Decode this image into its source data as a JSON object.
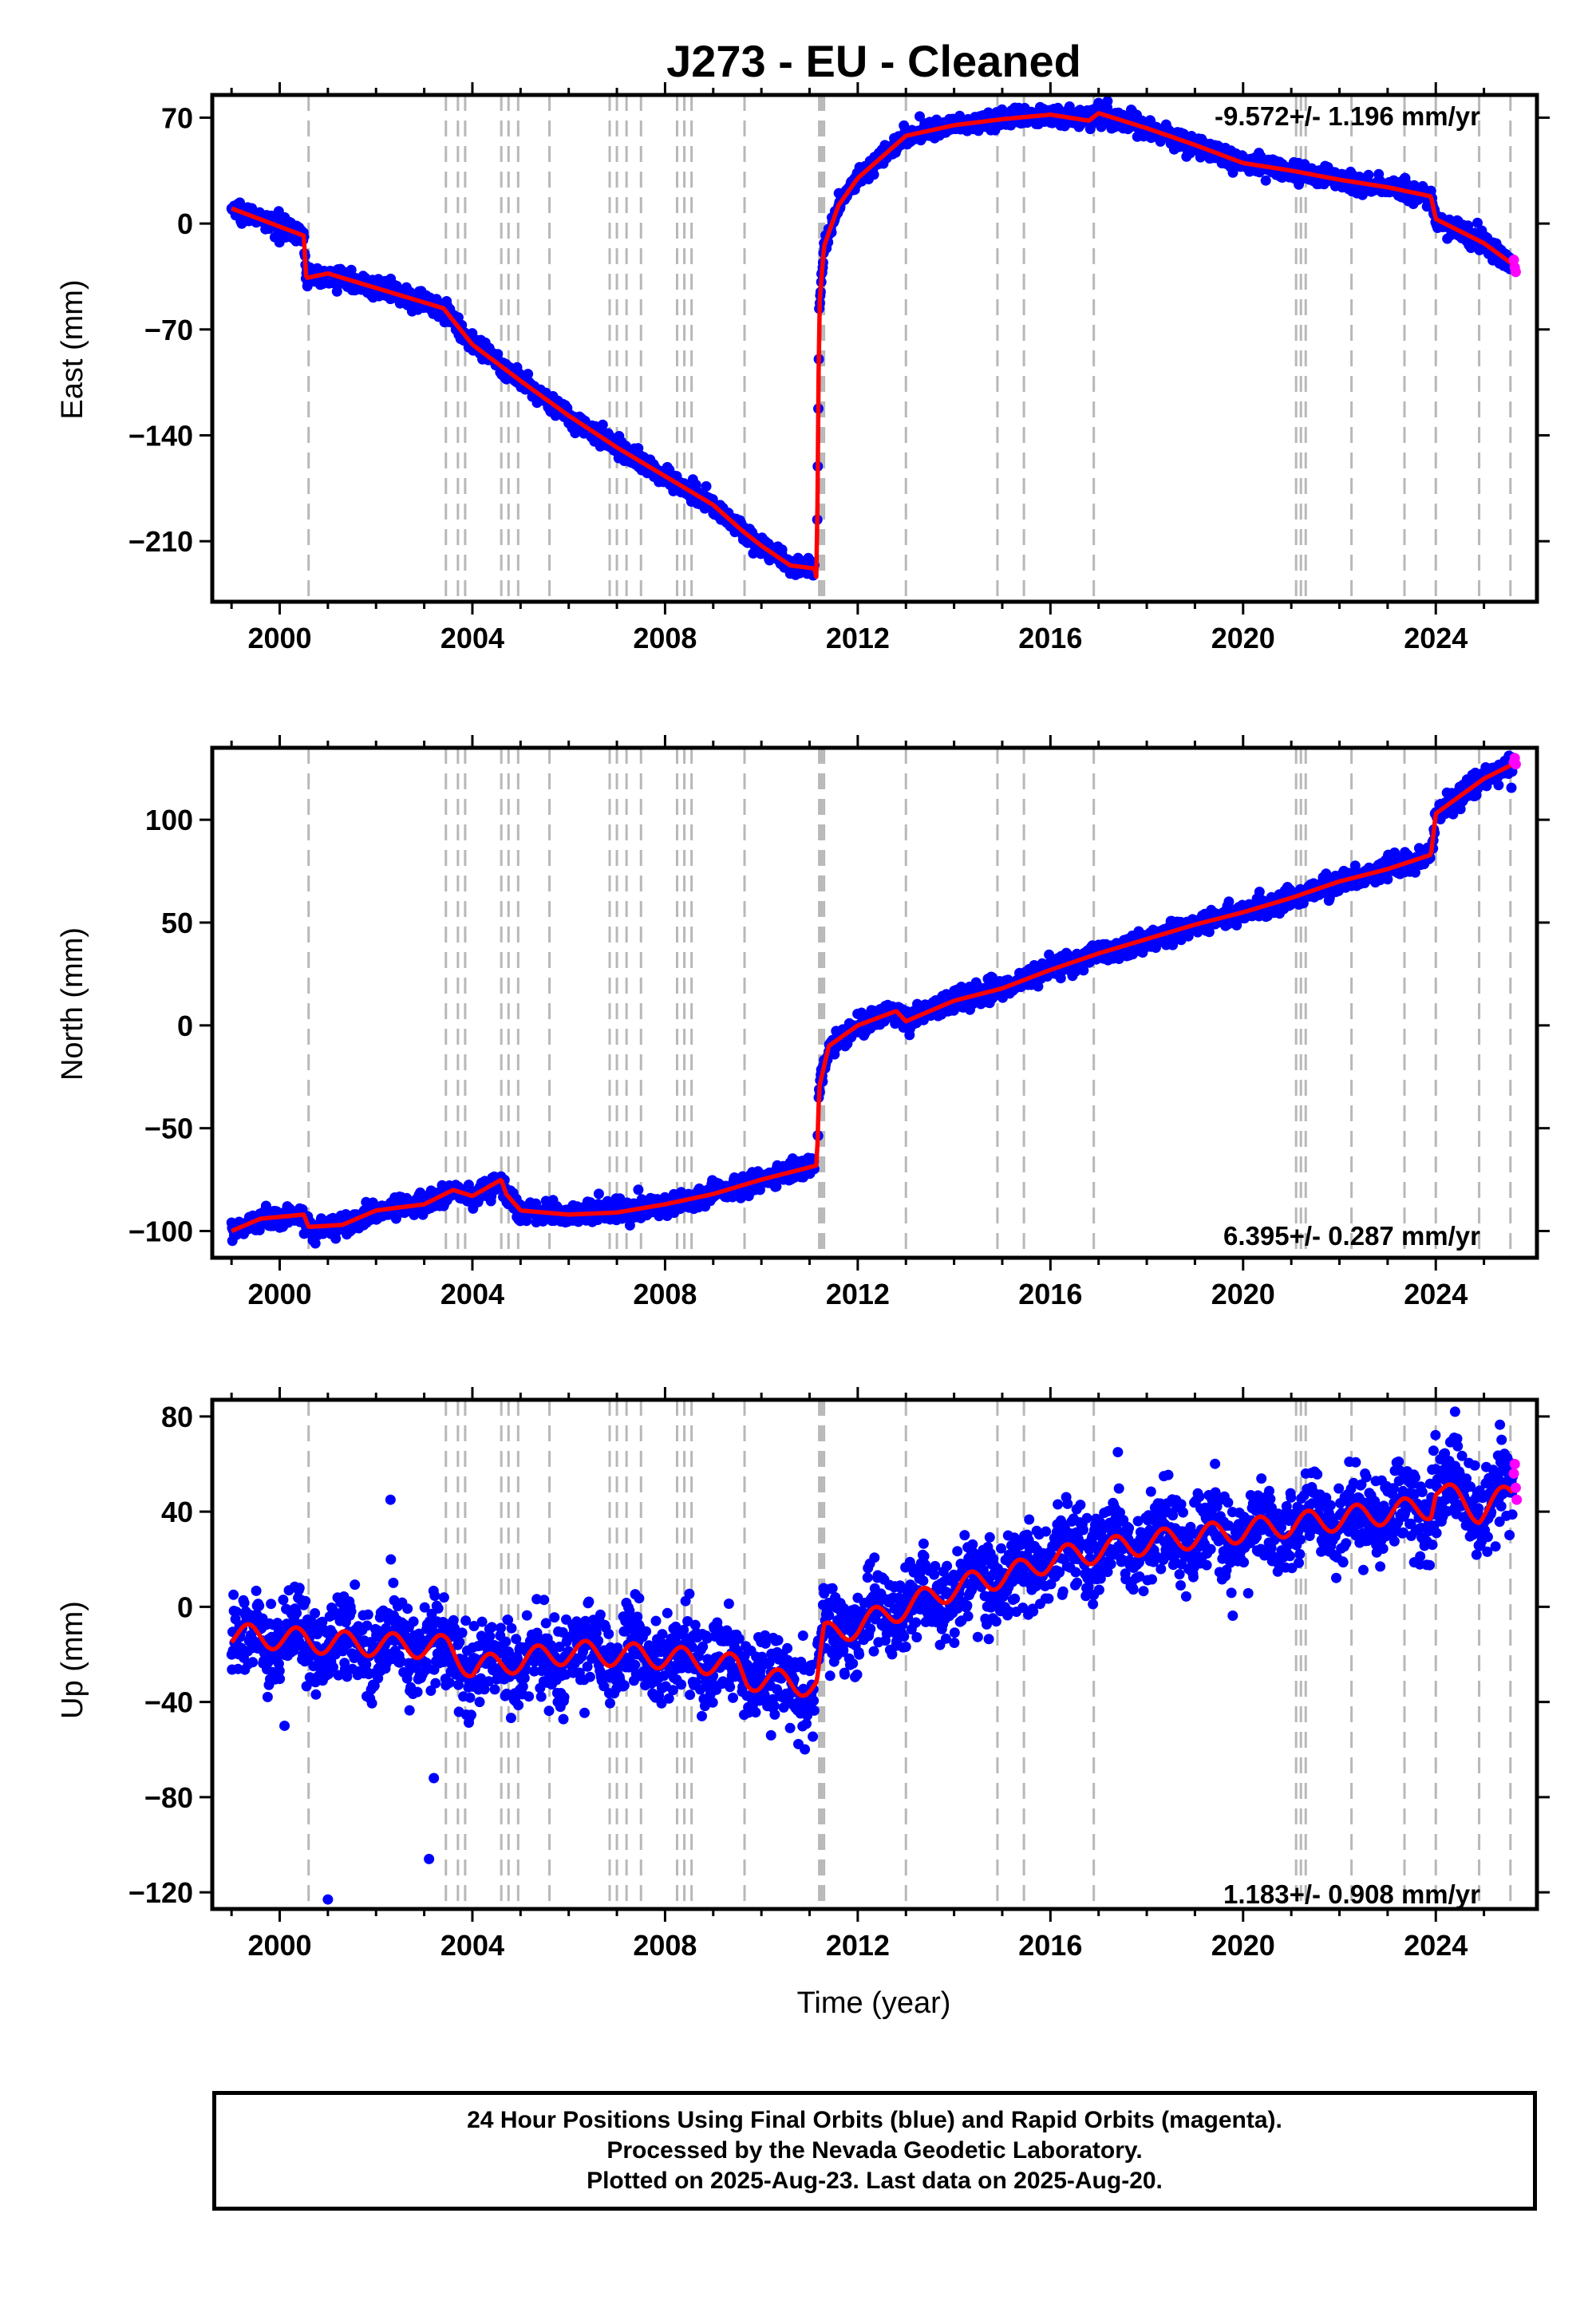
{
  "title": "J273  - EU - Cleaned",
  "xlabel": "Time (year)",
  "footer": {
    "line1": "24 Hour Positions Using Final Orbits (blue) and Rapid Orbits (magenta).",
    "line2": "Processed by the Nevada Geodetic Laboratory.",
    "line3": "Plotted on 2025-Aug-23. Last data on 2025-Aug-20."
  },
  "colors": {
    "final_orbits": "#0000ff",
    "rapid_orbits": "#ff00ff",
    "model": "#ff0000",
    "event_lines": "#b8b8b8"
  },
  "chart_data": [
    {
      "type": "scatter",
      "component": "East",
      "ylabel": "East (mm)",
      "rate": "-9.572+/- 1.196 mm/yr",
      "xlim": [
        1998.6,
        2026.1
      ],
      "ylim": [
        -250,
        85
      ],
      "yticks": [
        70,
        0,
        -70,
        -140,
        -210
      ],
      "xticks": [
        2000,
        2004,
        2008,
        2012,
        2016,
        2020,
        2024
      ],
      "noise": 3,
      "model": [
        [
          1999.0,
          10
        ],
        [
          2000.5,
          -8
        ],
        [
          2000.55,
          -36
        ],
        [
          2001.0,
          -33
        ],
        [
          2003.4,
          -56
        ],
        [
          2004.0,
          -80
        ],
        [
          2005.0,
          -104
        ],
        [
          2006.0,
          -127
        ],
        [
          2007.0,
          -148
        ],
        [
          2008.0,
          -167
        ],
        [
          2009.0,
          -186
        ],
        [
          2009.6,
          -203
        ],
        [
          2010.0,
          -213
        ],
        [
          2010.6,
          -226
        ],
        [
          2011.1,
          -228
        ],
        [
          2011.15,
          -235
        ],
        [
          2011.2,
          -55
        ],
        [
          2011.3,
          -15
        ],
        [
          2011.6,
          12
        ],
        [
          2012.0,
          30
        ],
        [
          2013.0,
          58
        ],
        [
          2014.0,
          65
        ],
        [
          2015.0,
          69
        ],
        [
          2016.0,
          72
        ],
        [
          2016.8,
          68
        ],
        [
          2017.0,
          73
        ],
        [
          2018.0,
          63
        ],
        [
          2019.0,
          52
        ],
        [
          2020.0,
          40
        ],
        [
          2021.0,
          35
        ],
        [
          2022.0,
          29
        ],
        [
          2023.0,
          24
        ],
        [
          2023.9,
          18
        ],
        [
          2024.0,
          3
        ],
        [
          2025.0,
          -13
        ],
        [
          2025.6,
          -27
        ]
      ],
      "rapid": [
        [
          2025.62,
          -24
        ],
        [
          2025.64,
          -29
        ],
        [
          2025.66,
          -32
        ]
      ],
      "events": [
        2000.6,
        2003.45,
        2003.7,
        2003.85,
        2004.6,
        2004.75,
        2004.95,
        2005.6,
        2006.85,
        2007.0,
        2007.2,
        2007.5,
        2008.25,
        2008.4,
        2008.55,
        2009.65,
        2011.2,
        2011.25,
        2011.3,
        2013.0,
        2014.9,
        2015.45,
        2016.9,
        2021.1,
        2021.2,
        2021.3,
        2022.25,
        2023.35,
        2024.0,
        2024.9,
        2025.55
      ]
    },
    {
      "type": "scatter",
      "component": "North",
      "ylabel": "North (mm)",
      "rate": "6.395+/- 0.287 mm/yr",
      "xlim": [
        1998.6,
        2026.1
      ],
      "ylim": [
        -113,
        135
      ],
      "yticks": [
        100,
        50,
        0,
        -50,
        -100
      ],
      "xticks": [
        2000,
        2004,
        2008,
        2012,
        2016,
        2020,
        2024
      ],
      "noise": 2.5,
      "model": [
        [
          1999.0,
          -100
        ],
        [
          1999.6,
          -94
        ],
        [
          2000.5,
          -92
        ],
        [
          2000.6,
          -98
        ],
        [
          2001.3,
          -97
        ],
        [
          2002.0,
          -90
        ],
        [
          2003.0,
          -87
        ],
        [
          2003.6,
          -80
        ],
        [
          2004.0,
          -83
        ],
        [
          2004.6,
          -75
        ],
        [
          2004.7,
          -82
        ],
        [
          2005.0,
          -90
        ],
        [
          2006.0,
          -92
        ],
        [
          2007.0,
          -91
        ],
        [
          2008.0,
          -87
        ],
        [
          2009.0,
          -82
        ],
        [
          2010.0,
          -75
        ],
        [
          2011.0,
          -69
        ],
        [
          2011.15,
          -68
        ],
        [
          2011.2,
          -30
        ],
        [
          2011.4,
          -10
        ],
        [
          2012.0,
          0
        ],
        [
          2012.8,
          7
        ],
        [
          2013.0,
          2
        ],
        [
          2014.0,
          12
        ],
        [
          2015.0,
          18
        ],
        [
          2016.0,
          27
        ],
        [
          2017.0,
          35
        ],
        [
          2018.0,
          42
        ],
        [
          2019.0,
          49
        ],
        [
          2020.0,
          55
        ],
        [
          2021.0,
          62
        ],
        [
          2022.0,
          70
        ],
        [
          2023.0,
          76
        ],
        [
          2023.9,
          83
        ],
        [
          2024.0,
          103
        ],
        [
          2025.0,
          120
        ],
        [
          2025.6,
          127
        ]
      ],
      "rapid": [
        [
          2025.62,
          128
        ],
        [
          2025.64,
          130
        ],
        [
          2025.66,
          127
        ]
      ],
      "events": [
        2000.6,
        2003.45,
        2003.7,
        2003.85,
        2004.6,
        2004.75,
        2004.95,
        2005.6,
        2006.85,
        2007.0,
        2007.2,
        2007.5,
        2008.25,
        2008.4,
        2008.55,
        2009.65,
        2011.2,
        2011.25,
        2011.3,
        2013.0,
        2014.9,
        2015.45,
        2016.9,
        2021.1,
        2021.2,
        2021.3,
        2022.25,
        2023.35,
        2024.0,
        2024.9,
        2025.55
      ]
    },
    {
      "type": "scatter",
      "component": "Up",
      "ylabel": "Up (mm)",
      "rate": "1.183+/- 0.908 mm/yr",
      "xlim": [
        1998.6,
        2026.1
      ],
      "ylim": [
        -127,
        87
      ],
      "yticks": [
        80,
        40,
        0,
        -40,
        -80,
        -120
      ],
      "xticks": [
        2000,
        2004,
        2008,
        2012,
        2016,
        2020,
        2024
      ],
      "noise": 9,
      "seasonal": 5,
      "model": [
        [
          1999.0,
          -12
        ],
        [
          2000.0,
          -13
        ],
        [
          2001.0,
          -15
        ],
        [
          2003.5,
          -17
        ],
        [
          2004.0,
          -26
        ],
        [
          2006.0,
          -19
        ],
        [
          2008.0,
          -21
        ],
        [
          2009.5,
          -25
        ],
        [
          2009.7,
          -30
        ],
        [
          2011.15,
          -33
        ],
        [
          2011.3,
          -12
        ],
        [
          2012.0,
          -8
        ],
        [
          2014.0,
          8
        ],
        [
          2015.4,
          15
        ],
        [
          2016.0,
          20
        ],
        [
          2018.0,
          27
        ],
        [
          2020.0,
          32
        ],
        [
          2022.0,
          37
        ],
        [
          2023.9,
          42
        ],
        [
          2024.0,
          50
        ],
        [
          2024.9,
          40
        ],
        [
          2025.6,
          48
        ]
      ],
      "rapid": [
        [
          2025.62,
          56
        ],
        [
          2025.64,
          60
        ],
        [
          2025.66,
          50
        ],
        [
          2025.68,
          45
        ]
      ],
      "outliers": [
        [
          2001.0,
          -123
        ],
        [
          2003.2,
          -72
        ],
        [
          2003.1,
          -106
        ],
        [
          2002.3,
          45
        ],
        [
          2017.4,
          65
        ],
        [
          2024.4,
          82
        ],
        [
          2010.2,
          -54
        ],
        [
          2000.1,
          -50
        ]
      ],
      "events": [
        2000.6,
        2003.45,
        2003.7,
        2003.85,
        2004.6,
        2004.75,
        2004.95,
        2005.6,
        2006.85,
        2007.0,
        2007.2,
        2007.5,
        2008.25,
        2008.4,
        2008.55,
        2009.65,
        2011.2,
        2011.25,
        2011.3,
        2013.0,
        2014.9,
        2015.45,
        2016.9,
        2021.1,
        2021.2,
        2021.3,
        2022.25,
        2023.35,
        2024.0,
        2024.9,
        2025.55
      ]
    }
  ]
}
